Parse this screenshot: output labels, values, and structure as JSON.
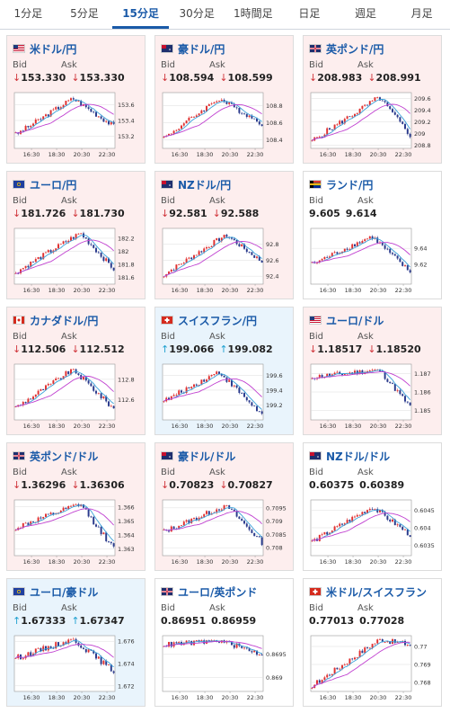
{
  "tabs": [
    {
      "label": "1分足",
      "active": false
    },
    {
      "label": "5分足",
      "active": false
    },
    {
      "label": "15分足",
      "active": true
    },
    {
      "label": "30分足",
      "active": false
    },
    {
      "label": "1時間足",
      "active": false
    },
    {
      "label": "日足",
      "active": false
    },
    {
      "label": "週足",
      "active": false
    },
    {
      "label": "月足",
      "active": false
    }
  ],
  "labels": {
    "bid": "Bid",
    "ask": "Ask"
  },
  "x_ticks": [
    "16:30",
    "18:30",
    "20:30",
    "22:30"
  ],
  "colors": {
    "up_candle": "#e03030",
    "down_candle": "#2a3a8c",
    "ma_short": "#3aa0d8",
    "ma_long": "#c040d0",
    "down_arrow": "#d0343a",
    "up_arrow": "#20a0d0",
    "title": "#1a5aa8"
  },
  "cards": [
    {
      "pair": "米ドル/円",
      "flag": "us-flag",
      "trend": "down",
      "bid": "153.330",
      "ask": "153.330",
      "y_ticks": [
        "153.6",
        "153.4",
        "153.2"
      ],
      "ylim": [
        153.05,
        153.75
      ],
      "series_start": 153.22,
      "series_end": 153.33,
      "series_peak": 153.68,
      "series_low": 153.12
    },
    {
      "pair": "豪ドル/円",
      "flag": "au-flag",
      "trend": "down",
      "bid": "108.594",
      "ask": "108.599",
      "y_ticks": [
        "108.8",
        "108.6",
        "108.4"
      ],
      "ylim": [
        108.3,
        108.95
      ],
      "series_start": 108.42,
      "series_end": 108.59,
      "series_peak": 108.88,
      "series_low": 108.38
    },
    {
      "pair": "英ポンド/円",
      "flag": "gb-flag",
      "trend": "down",
      "bid": "208.983",
      "ask": "208.991",
      "y_ticks": [
        "209.6",
        "209.4",
        "209.2",
        "209",
        "208.8"
      ],
      "ylim": [
        208.75,
        209.7
      ],
      "series_start": 208.88,
      "series_end": 208.98,
      "series_peak": 209.62,
      "series_low": 208.8
    },
    {
      "pair": "ユーロ/円",
      "flag": "eu-flag",
      "trend": "down",
      "bid": "181.726",
      "ask": "181.730",
      "y_ticks": [
        "182.2",
        "182",
        "181.8",
        "181.6"
      ],
      "ylim": [
        181.5,
        182.35
      ],
      "series_start": 181.68,
      "series_end": 181.73,
      "series_peak": 182.28,
      "series_low": 181.6
    },
    {
      "pair": "NZドル/円",
      "flag": "nz-flag",
      "trend": "down",
      "bid": "92.581",
      "ask": "92.588",
      "y_ticks": [
        "92.8",
        "92.6",
        "92.4"
      ],
      "ylim": [
        92.3,
        93.0
      ],
      "series_start": 92.42,
      "series_end": 92.58,
      "series_peak": 92.92,
      "series_low": 92.38
    },
    {
      "pair": "ランド/円",
      "flag": "za-flag",
      "trend": "neutral",
      "bid": "9.605",
      "ask": "9.614",
      "y_ticks": [
        "9.64",
        "9.62"
      ],
      "ylim": [
        9.595,
        9.665
      ],
      "series_start": 9.62,
      "series_end": 9.61,
      "series_peak": 9.655,
      "series_low": 9.6
    },
    {
      "pair": "カナダドル/円",
      "flag": "ca-flag",
      "trend": "down",
      "bid": "112.506",
      "ask": "112.512",
      "y_ticks": [
        "112.8",
        "112.6"
      ],
      "ylim": [
        112.4,
        112.95
      ],
      "series_start": 112.52,
      "series_end": 112.51,
      "series_peak": 112.9,
      "series_low": 112.45
    },
    {
      "pair": "スイスフラン/円",
      "flag": "ch-flag",
      "trend": "up",
      "bid": "199.066",
      "ask": "199.082",
      "y_ticks": [
        "199.6",
        "199.4",
        "199.2"
      ],
      "ylim": [
        199.0,
        199.75
      ],
      "series_start": 199.25,
      "series_end": 199.07,
      "series_peak": 199.65,
      "series_low": 199.05
    },
    {
      "pair": "ユーロ/ドル",
      "flag": "us-flag",
      "trend": "down",
      "bid": "1.18517",
      "ask": "1.18520",
      "y_ticks": [
        "1.187",
        "1.186",
        "1.185"
      ],
      "ylim": [
        1.1845,
        1.1875
      ],
      "series_start": 1.1868,
      "series_end": 1.1852,
      "series_peak": 1.1872,
      "series_low": 1.1848
    },
    {
      "pair": "英ポンド/ドル",
      "flag": "gb-flag",
      "trend": "down",
      "bid": "1.36296",
      "ask": "1.36306",
      "y_ticks": [
        "1.366",
        "1.365",
        "1.364",
        "1.363"
      ],
      "ylim": [
        1.3625,
        1.3665
      ],
      "series_start": 1.3645,
      "series_end": 1.363,
      "series_peak": 1.3662,
      "series_low": 1.3628
    },
    {
      "pair": "豪ドル/ドル",
      "flag": "au-flag",
      "trend": "down",
      "bid": "0.70823",
      "ask": "0.70827",
      "y_ticks": [
        "0.7095",
        "0.709",
        "0.7085",
        "0.708"
      ],
      "ylim": [
        0.7077,
        0.7098
      ],
      "series_start": 0.7086,
      "series_end": 0.7082,
      "series_peak": 0.7096,
      "series_low": 0.7079
    },
    {
      "pair": "NZドル/ドル",
      "flag": "nz-flag",
      "trend": "neutral",
      "bid": "0.60375",
      "ask": "0.60389",
      "y_ticks": [
        "0.6045",
        "0.604",
        "0.6035"
      ],
      "ylim": [
        0.6032,
        0.6048
      ],
      "series_start": 0.6036,
      "series_end": 0.6038,
      "series_peak": 0.6046,
      "series_low": 0.6033
    },
    {
      "pair": "ユーロ/豪ドル",
      "flag": "eu-flag",
      "trend": "up",
      "bid": "1.67333",
      "ask": "1.67347",
      "y_ticks": [
        "1.676",
        "1.674",
        "1.672"
      ],
      "ylim": [
        1.6715,
        1.6765
      ],
      "series_start": 1.6745,
      "series_end": 1.6733,
      "series_peak": 1.6762,
      "series_low": 1.6718
    },
    {
      "pair": "ユーロ/英ポンド",
      "flag": "gb-flag",
      "trend": "neutral",
      "bid": "0.86951",
      "ask": "0.86959",
      "y_ticks": [
        "0.8695",
        "0.869"
      ],
      "ylim": [
        0.8687,
        0.8699
      ],
      "series_start": 0.8697,
      "series_end": 0.8695,
      "series_peak": 0.8698,
      "series_low": 0.8688
    },
    {
      "pair": "米ドル/スイスフラン",
      "flag": "ch-flag",
      "trend": "neutral",
      "bid": "0.77013",
      "ask": "0.77028",
      "y_ticks": [
        "0.77",
        "0.769",
        "0.768"
      ],
      "ylim": [
        0.7675,
        0.7706
      ],
      "series_start": 0.7678,
      "series_end": 0.7701,
      "series_peak": 0.7704,
      "series_low": 0.7677
    }
  ]
}
